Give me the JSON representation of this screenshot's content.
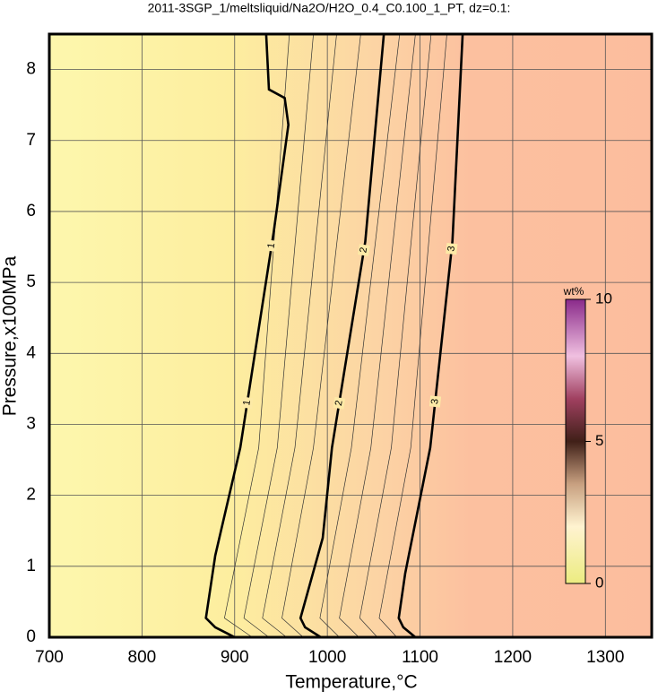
{
  "chart_data": {
    "type": "contour",
    "title": "2011-3SGP_1/meltsliquid/Na2O/H2O_0.4_C0.100_1_PT, dz=0.1:",
    "x_label": "Temperature,°C",
    "y_label": "Pressure,x100MPa",
    "xlim": [
      700,
      1350
    ],
    "xticks": [
      700,
      800,
      900,
      1000,
      1100,
      1200,
      1300
    ],
    "ylim": [
      0,
      8.5
    ],
    "yticks": [
      0,
      1,
      2,
      3,
      4,
      5,
      6,
      7,
      8
    ],
    "grid": true,
    "contours": [
      {
        "name": "1",
        "color": "#000000",
        "x": [
          934,
          937,
          954,
          958,
          942,
          906,
          879,
          869,
          879,
          900
        ],
        "y": [
          8.5,
          7.72,
          7.6,
          7.22,
          5.7,
          2.67,
          1.15,
          0.27,
          0.14,
          0
        ]
      },
      {
        "name": "2",
        "color": "#000000",
        "x": [
          1061,
          1041,
          1005,
          995,
          971,
          976,
          993
        ],
        "y": [
          8.5,
          5.58,
          2.67,
          1.4,
          0.27,
          0.14,
          0
        ]
      },
      {
        "name": "3",
        "color": "#000000",
        "x": [
          1146,
          1135,
          1111,
          1084,
          1077,
          1082,
          1095
        ],
        "y": [
          8.5,
          5.58,
          2.67,
          0.9,
          0.27,
          0.14,
          0
        ]
      }
    ],
    "minor_contours": [
      {
        "level": 1.2,
        "x": [
          959,
          926,
          889,
          919
        ],
        "y": [
          8.5,
          2.67,
          0.27,
          0
        ]
      },
      {
        "level": 1.4,
        "x": [
          985,
          946,
          910,
          937
        ],
        "y": [
          8.5,
          2.67,
          0.27,
          0
        ]
      },
      {
        "level": 1.6,
        "x": [
          1010,
          965,
          930,
          956
        ],
        "y": [
          8.5,
          2.67,
          0.27,
          0
        ]
      },
      {
        "level": 1.8,
        "x": [
          1036,
          985,
          951,
          974
        ],
        "y": [
          8.5,
          2.67,
          0.27,
          0
        ]
      },
      {
        "level": 2.2,
        "x": [
          1078,
          1026,
          992,
          1013
        ],
        "y": [
          8.5,
          2.67,
          0.27,
          0
        ]
      },
      {
        "level": 2.4,
        "x": [
          1095,
          1047,
          1013,
          1034
        ],
        "y": [
          8.5,
          2.67,
          0.27,
          0
        ]
      },
      {
        "level": 2.6,
        "x": [
          1112,
          1069,
          1035,
          1054
        ],
        "y": [
          8.5,
          2.67,
          0.27,
          0
        ]
      },
      {
        "level": 2.8,
        "x": [
          1129,
          1090,
          1056,
          1075
        ],
        "y": [
          8.5,
          2.67,
          0.27,
          0
        ]
      }
    ],
    "colorbar": {
      "label": "wt%",
      "lim": [
        0,
        10
      ],
      "ticks": [
        0,
        5,
        10
      ]
    }
  }
}
